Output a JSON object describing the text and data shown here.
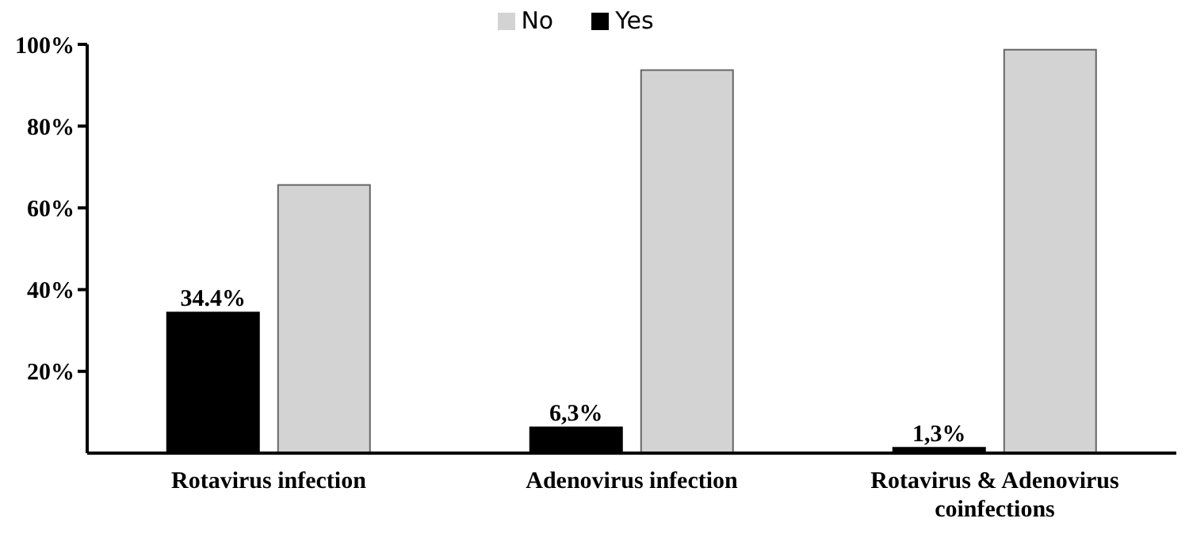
{
  "chart_data": {
    "type": "bar",
    "categories": [
      "Rotavirus infection",
      "Adenovirus infection",
      "Rotavirus & Adenovirus coinfections"
    ],
    "series": [
      {
        "name": "Yes",
        "color": "#000000",
        "values": [
          34.4,
          6.3,
          1.3
        ],
        "value_labels": [
          "34.4%",
          "6,3%",
          "1,3%"
        ]
      },
      {
        "name": "No",
        "color": "#d3d3d3",
        "values": [
          65.6,
          93.7,
          98.7
        ]
      }
    ],
    "ylim": [
      0,
      100
    ],
    "yticks": [
      {
        "value": 20,
        "label": "20%"
      },
      {
        "value": 40,
        "label": "40%"
      },
      {
        "value": 60,
        "label": "60%"
      },
      {
        "value": 80,
        "label": "80%"
      },
      {
        "value": 100,
        "label": "100%"
      }
    ],
    "grid": false,
    "legend": "top"
  }
}
